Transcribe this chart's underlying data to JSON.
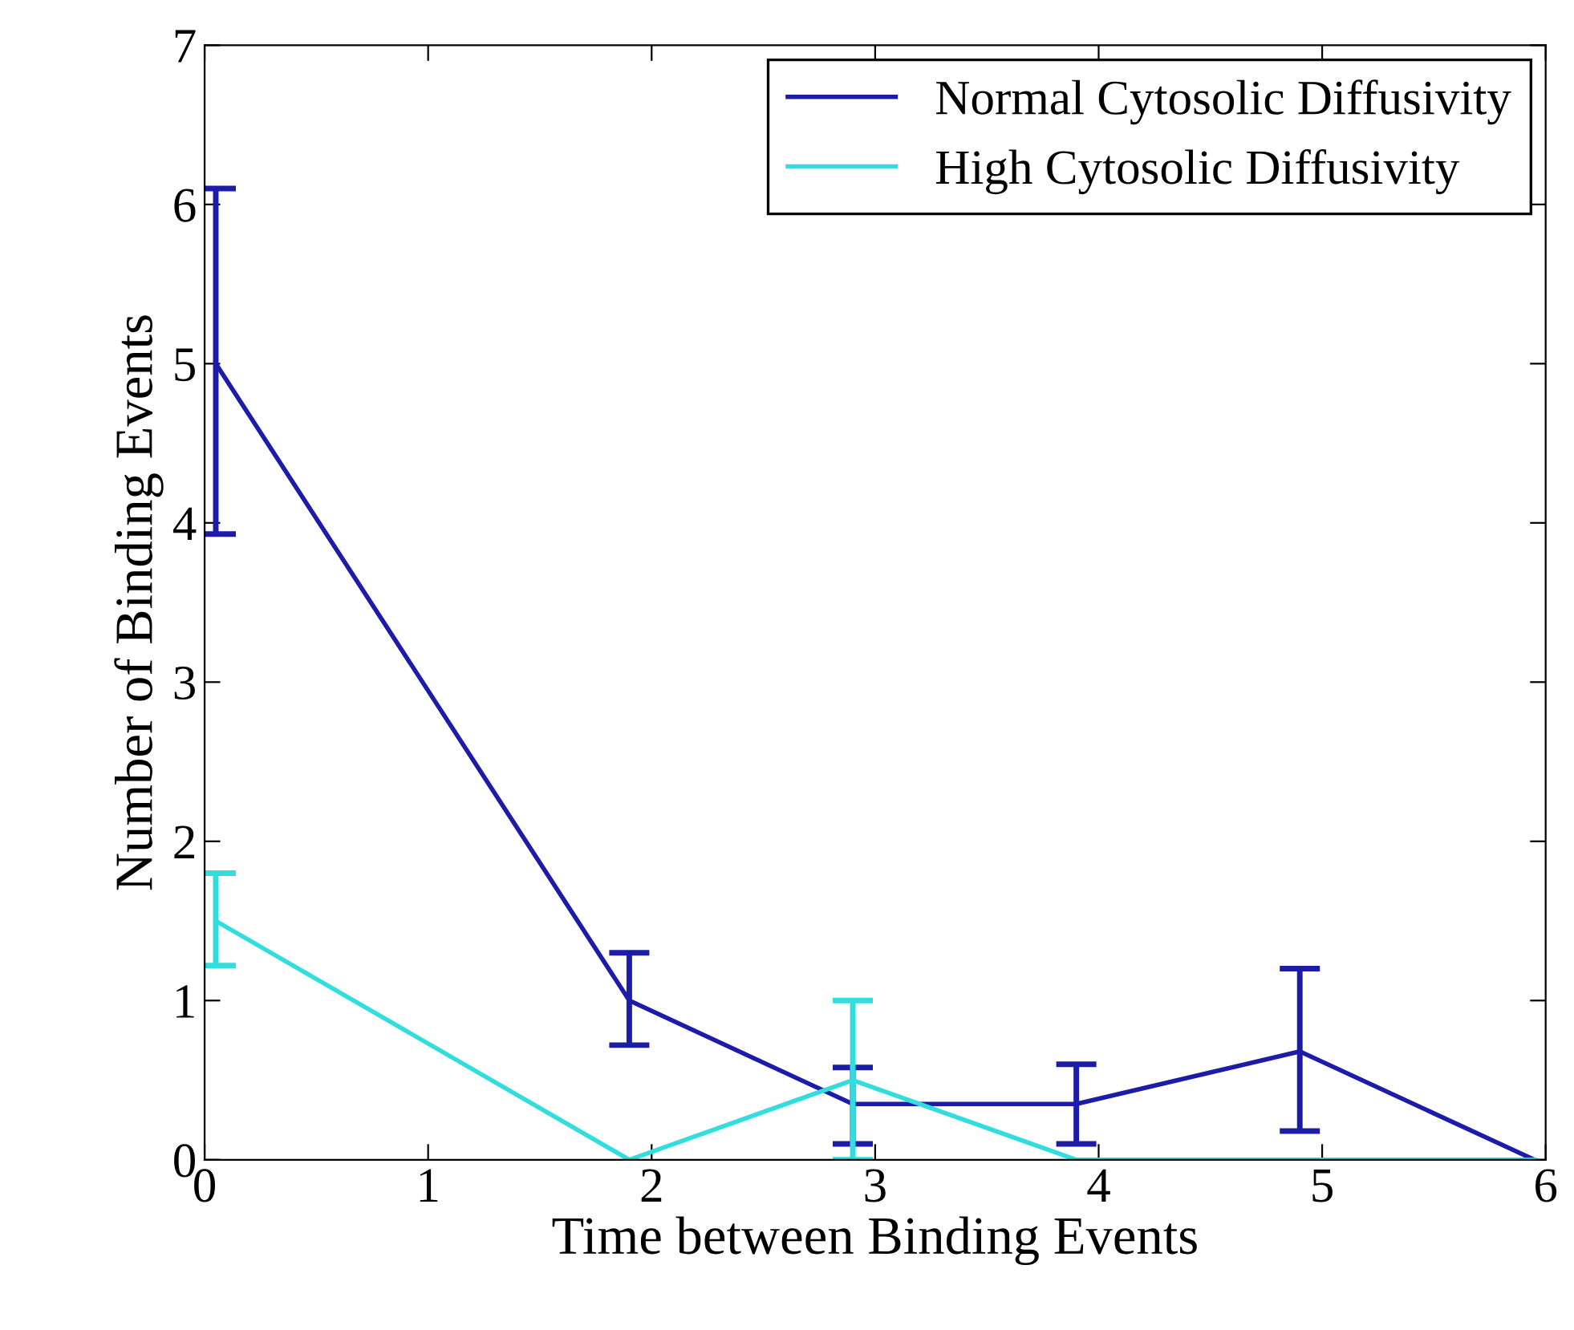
{
  "chart_data": {
    "type": "line",
    "xlabel": "Time between Binding Events",
    "ylabel": "Number of Binding Events",
    "xlim": [
      0,
      6
    ],
    "xticks": [
      0,
      1,
      2,
      3,
      4,
      5,
      6
    ],
    "ylim": [
      0,
      7
    ],
    "yticks": [
      0,
      1,
      2,
      3,
      4,
      5,
      6,
      7
    ],
    "grid": false,
    "legend": "top right",
    "marker": "none",
    "line_style": "solid",
    "series": [
      {
        "name": "Normal Cytosolic Diffusivity",
        "color": "#1c1ca8",
        "x": [
          0.05,
          1.9,
          2.9,
          3.9,
          4.9,
          5.95
        ],
        "values": [
          5,
          1,
          0.35,
          0.35,
          0.68,
          0
        ],
        "errors": [
          [
            3.93,
            6.1
          ],
          [
            0.72,
            1.3
          ],
          [
            0.1,
            0.58
          ],
          [
            0.1,
            0.6
          ],
          [
            0.18,
            1.2
          ],
          null
        ]
      },
      {
        "name": "High Cytosolic Diffusivity",
        "color": "#33dddd",
        "x": [
          0.05,
          1.9,
          2.9,
          3.9,
          4.9,
          5.95
        ],
        "values": [
          1.5,
          0,
          0.5,
          0,
          0,
          0
        ],
        "errors": [
          [
            1.22,
            1.8
          ],
          null,
          [
            0,
            1.0
          ],
          null,
          null,
          null
        ]
      }
    ]
  }
}
